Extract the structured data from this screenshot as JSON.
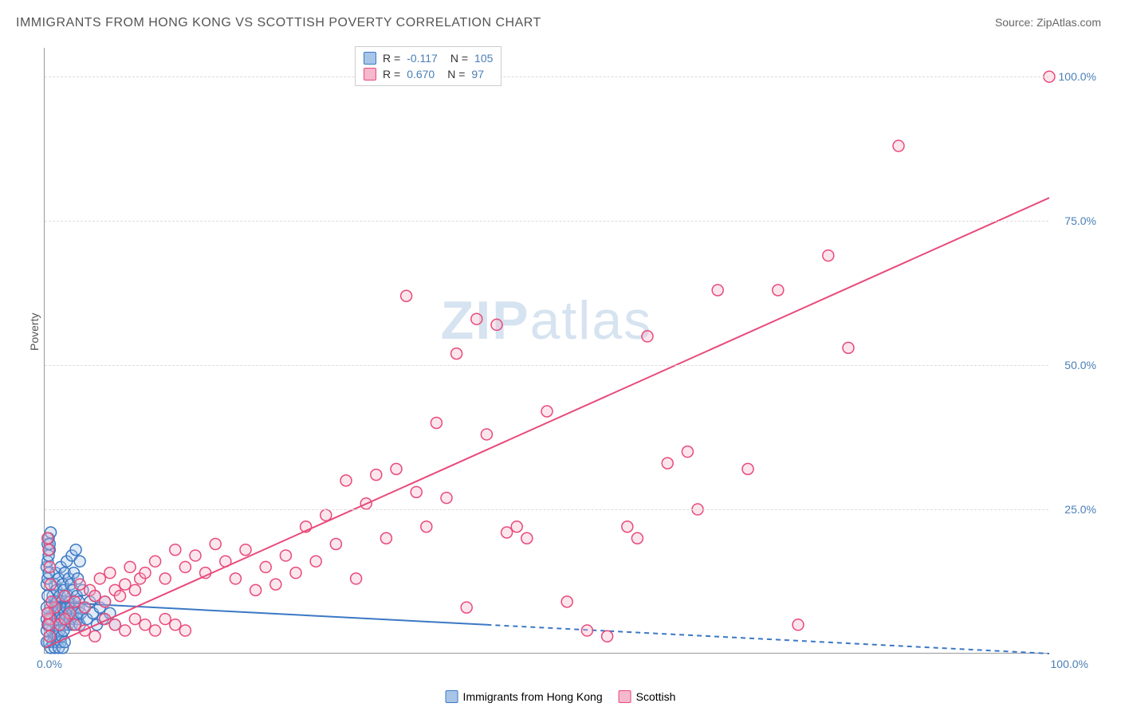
{
  "title": "IMMIGRANTS FROM HONG KONG VS SCOTTISH POVERTY CORRELATION CHART",
  "source": "Source: ZipAtlas.com",
  "watermark_a": "ZIP",
  "watermark_b": "atlas",
  "y_axis_title": "Poverty",
  "chart": {
    "type": "scatter",
    "xlim": [
      0,
      100
    ],
    "ylim": [
      0,
      105
    ],
    "x_tick_min": "0.0%",
    "x_tick_max": "100.0%",
    "y_ticks": [
      {
        "v": 25,
        "label": "25.0%"
      },
      {
        "v": 50,
        "label": "50.0%"
      },
      {
        "v": 75,
        "label": "75.0%"
      },
      {
        "v": 100,
        "label": "100.0%"
      }
    ],
    "grid_color": "#dddddd",
    "background_color": "#ffffff",
    "axis_color": "#999999",
    "tick_label_color": "#4a7fb5",
    "marker_radius": 7,
    "marker_stroke_width": 1.5,
    "marker_fill_opacity": 0.35,
    "series": [
      {
        "name": "Immigrants from Hong Kong",
        "color_stroke": "#3b78c4",
        "color_fill": "#a8c5e8",
        "R": -0.117,
        "N": 105,
        "regression": {
          "x1": 0,
          "y1": 9,
          "x2": 44,
          "y2": 5,
          "x2_dash": 100,
          "y2_dash": 0,
          "stroke_width": 2
        },
        "points": [
          [
            0.5,
            5
          ],
          [
            0.6,
            8
          ],
          [
            0.7,
            6
          ],
          [
            0.8,
            10
          ],
          [
            0.9,
            7
          ],
          [
            1.0,
            9
          ],
          [
            1.0,
            12
          ],
          [
            1.1,
            5
          ],
          [
            1.1,
            14
          ],
          [
            1.2,
            7
          ],
          [
            1.2,
            11
          ],
          [
            1.3,
            6
          ],
          [
            1.3,
            9
          ],
          [
            1.4,
            8
          ],
          [
            1.4,
            13
          ],
          [
            1.5,
            5
          ],
          [
            1.5,
            10
          ],
          [
            1.6,
            7
          ],
          [
            1.6,
            15
          ],
          [
            1.7,
            6
          ],
          [
            1.7,
            9
          ],
          [
            1.8,
            8
          ],
          [
            1.8,
            12
          ],
          [
            1.9,
            5
          ],
          [
            1.9,
            11
          ],
          [
            2.0,
            7
          ],
          [
            2.0,
            14
          ],
          [
            2.1,
            6
          ],
          [
            2.1,
            9
          ],
          [
            2.2,
            8
          ],
          [
            2.2,
            16
          ],
          [
            2.3,
            5
          ],
          [
            2.3,
            10
          ],
          [
            2.4,
            7
          ],
          [
            2.4,
            13
          ],
          [
            2.5,
            6
          ],
          [
            2.5,
            9
          ],
          [
            2.6,
            8
          ],
          [
            2.6,
            12
          ],
          [
            2.7,
            5
          ],
          [
            2.7,
            17
          ],
          [
            2.8,
            7
          ],
          [
            2.8,
            11
          ],
          [
            2.9,
            6
          ],
          [
            2.9,
            14
          ],
          [
            3.0,
            8
          ],
          [
            3.0,
            9
          ],
          [
            3.1,
            5
          ],
          [
            3.1,
            18
          ],
          [
            3.2,
            7
          ],
          [
            3.2,
            10
          ],
          [
            3.3,
            6
          ],
          [
            3.3,
            13
          ],
          [
            3.4,
            8
          ],
          [
            3.4,
            9
          ],
          [
            3.5,
            5
          ],
          [
            3.5,
            16
          ],
          [
            3.6,
            7
          ],
          [
            3.8,
            11
          ],
          [
            4.0,
            8
          ],
          [
            4.2,
            6
          ],
          [
            4.5,
            9
          ],
          [
            4.8,
            7
          ],
          [
            5.0,
            10
          ],
          [
            5.2,
            5
          ],
          [
            5.5,
            8
          ],
          [
            5.8,
            6
          ],
          [
            6.0,
            9
          ],
          [
            6.5,
            7
          ],
          [
            7.0,
            5
          ],
          [
            0.4,
            2
          ],
          [
            0.5,
            3
          ],
          [
            0.6,
            1
          ],
          [
            0.7,
            4
          ],
          [
            0.8,
            2
          ],
          [
            0.9,
            3
          ],
          [
            1.0,
            1
          ],
          [
            1.1,
            4
          ],
          [
            1.2,
            2
          ],
          [
            1.3,
            3
          ],
          [
            1.4,
            1
          ],
          [
            1.5,
            4
          ],
          [
            1.6,
            2
          ],
          [
            1.7,
            3
          ],
          [
            1.8,
            1
          ],
          [
            1.9,
            4
          ],
          [
            2.0,
            2
          ],
          [
            0.3,
            19
          ],
          [
            0.4,
            20
          ],
          [
            0.5,
            18
          ],
          [
            0.6,
            21
          ],
          [
            0.2,
            15
          ],
          [
            0.3,
            16
          ],
          [
            0.4,
            17
          ],
          [
            0.5,
            19
          ],
          [
            0.2,
            12
          ],
          [
            0.3,
            13
          ],
          [
            0.4,
            14
          ],
          [
            0.2,
            8
          ],
          [
            0.3,
            10
          ],
          [
            0.2,
            6
          ],
          [
            0.3,
            7
          ],
          [
            0.2,
            4
          ],
          [
            0.3,
            5
          ],
          [
            0.2,
            2
          ]
        ]
      },
      {
        "name": "Scottish",
        "color_stroke": "#e84a7a",
        "color_fill": "#f5b8cc",
        "R": 0.67,
        "N": 97,
        "regression": {
          "x1": 0,
          "y1": 1,
          "x2": 100,
          "y2": 79,
          "stroke_width": 2
        },
        "points": [
          [
            0.5,
            6
          ],
          [
            1,
            8
          ],
          [
            1.5,
            5
          ],
          [
            2,
            10
          ],
          [
            2.5,
            7
          ],
          [
            3,
            9
          ],
          [
            3.5,
            12
          ],
          [
            4,
            8
          ],
          [
            4.5,
            11
          ],
          [
            5,
            10
          ],
          [
            5.5,
            13
          ],
          [
            6,
            9
          ],
          [
            6.5,
            14
          ],
          [
            7,
            11
          ],
          [
            7.5,
            10
          ],
          [
            8,
            12
          ],
          [
            8.5,
            15
          ],
          [
            9,
            11
          ],
          [
            9.5,
            13
          ],
          [
            10,
            14
          ],
          [
            11,
            16
          ],
          [
            12,
            13
          ],
          [
            13,
            18
          ],
          [
            14,
            15
          ],
          [
            15,
            17
          ],
          [
            16,
            14
          ],
          [
            17,
            19
          ],
          [
            18,
            16
          ],
          [
            19,
            13
          ],
          [
            20,
            18
          ],
          [
            21,
            11
          ],
          [
            22,
            15
          ],
          [
            23,
            12
          ],
          [
            24,
            17
          ],
          [
            25,
            14
          ],
          [
            26,
            22
          ],
          [
            27,
            16
          ],
          [
            28,
            24
          ],
          [
            29,
            19
          ],
          [
            30,
            30
          ],
          [
            31,
            13
          ],
          [
            32,
            26
          ],
          [
            33,
            31
          ],
          [
            34,
            20
          ],
          [
            35,
            32
          ],
          [
            36,
            62
          ],
          [
            37,
            28
          ],
          [
            38,
            22
          ],
          [
            39,
            40
          ],
          [
            40,
            27
          ],
          [
            41,
            52
          ],
          [
            42,
            8
          ],
          [
            43,
            58
          ],
          [
            44,
            38
          ],
          [
            45,
            57
          ],
          [
            46,
            21
          ],
          [
            47,
            22
          ],
          [
            48,
            20
          ],
          [
            50,
            42
          ],
          [
            52,
            9
          ],
          [
            54,
            4
          ],
          [
            56,
            3
          ],
          [
            58,
            22
          ],
          [
            59,
            20
          ],
          [
            60,
            55
          ],
          [
            62,
            33
          ],
          [
            64,
            35
          ],
          [
            65,
            25
          ],
          [
            67,
            63
          ],
          [
            70,
            32
          ],
          [
            73,
            63
          ],
          [
            75,
            5
          ],
          [
            78,
            69
          ],
          [
            80,
            53
          ],
          [
            85,
            88
          ],
          [
            100,
            100
          ],
          [
            0.3,
            20
          ],
          [
            0.4,
            18
          ],
          [
            0.5,
            15
          ],
          [
            0.6,
            12
          ],
          [
            0.7,
            9
          ],
          [
            0.3,
            7
          ],
          [
            0.4,
            5
          ],
          [
            0.5,
            3
          ],
          [
            2,
            6
          ],
          [
            3,
            5
          ],
          [
            4,
            4
          ],
          [
            5,
            3
          ],
          [
            6,
            6
          ],
          [
            7,
            5
          ],
          [
            8,
            4
          ],
          [
            9,
            6
          ],
          [
            10,
            5
          ],
          [
            11,
            4
          ],
          [
            12,
            6
          ],
          [
            13,
            5
          ],
          [
            14,
            4
          ]
        ]
      }
    ]
  },
  "legend_top": {
    "rows": [
      {
        "sq_fill": "#a8c5e8",
        "sq_stroke": "#3b78c4",
        "r_label": "R =",
        "r_val": "-0.117",
        "n_label": "N =",
        "n_val": "105"
      },
      {
        "sq_fill": "#f5b8cc",
        "sq_stroke": "#e84a7a",
        "r_label": "R =",
        "r_val": "0.670",
        "n_label": "N =",
        "n_val": " 97"
      }
    ]
  },
  "legend_bottom": {
    "items": [
      {
        "sq_fill": "#a8c5e8",
        "sq_stroke": "#3b78c4",
        "label": "Immigrants from Hong Kong"
      },
      {
        "sq_fill": "#f5b8cc",
        "sq_stroke": "#e84a7a",
        "label": "Scottish"
      }
    ]
  }
}
